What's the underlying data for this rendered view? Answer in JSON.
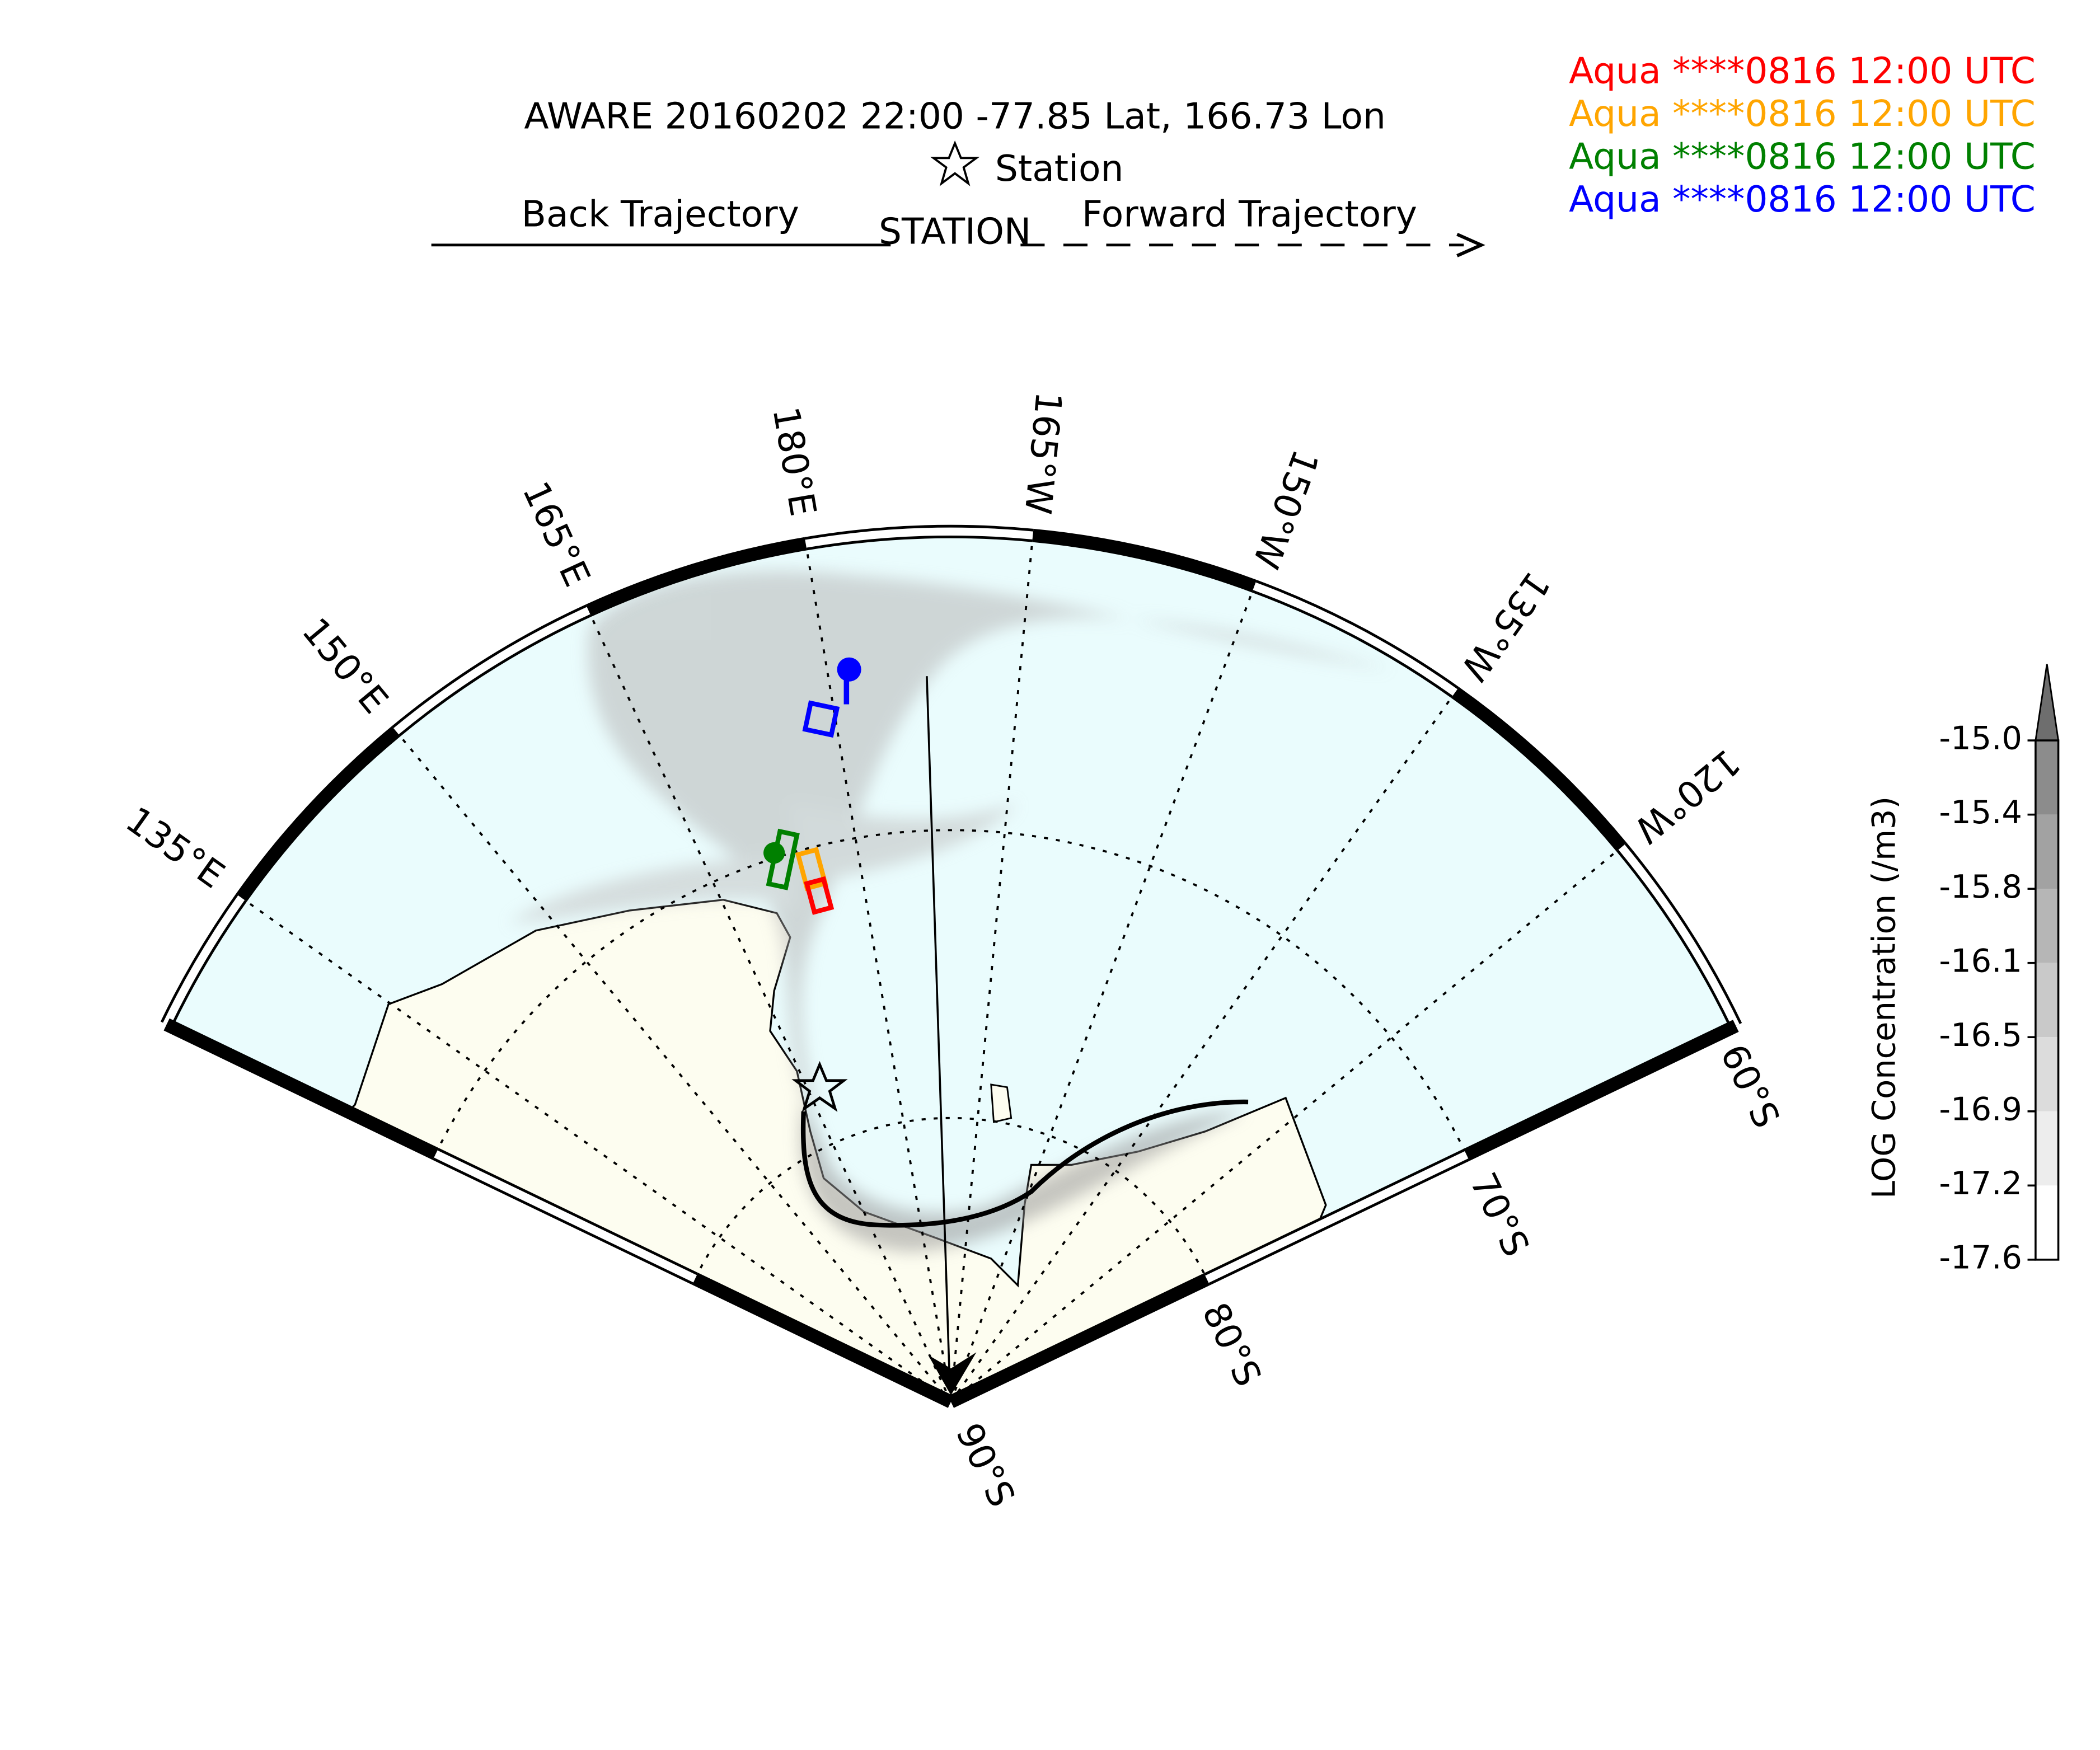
{
  "header": {
    "title": "AWARE 20160202 22:00  -77.85 Lat,  166.73 Lon",
    "station_key": "Station",
    "back_label": "Back Trajectory",
    "station_label": "STATION",
    "forward_label": "Forward Trajectory"
  },
  "legend": [
    {
      "text": "Aqua ****0816 12:00 UTC",
      "color": "#ff0000"
    },
    {
      "text": "Aqua ****0816 12:00 UTC",
      "color": "#ffa500"
    },
    {
      "text": "Aqua ****0816 12:00 UTC",
      "color": "#008000"
    },
    {
      "text": "Aqua ****0816 12:00 UTC",
      "color": "#0000ff"
    }
  ],
  "map": {
    "meridian_labels": [
      "135°E",
      "150°E",
      "165°E",
      "180°E",
      "165°W",
      "150°W",
      "135°W",
      "120°W"
    ],
    "parallel_labels": [
      "60°S",
      "70°S",
      "80°S",
      "90°S"
    ]
  },
  "colorbar": {
    "label": "LOG Concentration (/m3)",
    "ticks": [
      {
        "value": -15.0,
        "label": "-15.0"
      },
      -15.4,
      -15.8,
      -16.1,
      -16.5,
      -16.9,
      -17.2,
      -17.6
    ],
    "colors": [
      "#8c8c8c",
      "#a2a2a2",
      "#b6b6b6",
      "#c9c9c9",
      "#dcdcdc",
      "#ededed",
      "#ffffff"
    ],
    "extend_color": "#6e6e6e"
  }
}
